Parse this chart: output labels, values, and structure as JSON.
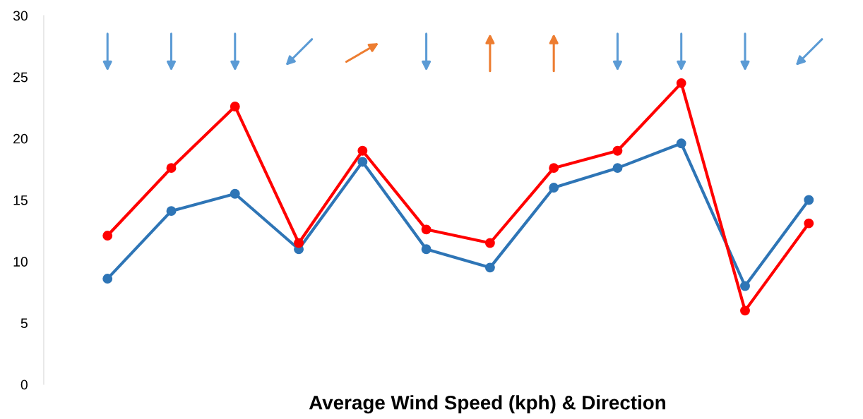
{
  "chart_data": {
    "type": "line",
    "title": "Average Wind Speed (kph) & Direction",
    "categories": [
      null,
      null,
      null,
      null,
      null,
      null,
      null,
      null,
      null,
      null,
      null,
      null
    ],
    "series": [
      {
        "color": "#2e75b6",
        "values": [
          8.6,
          14.1,
          15.5,
          11.0,
          18.1,
          11.0,
          9.5,
          16.0,
          17.6,
          19.6,
          8.0,
          15.0
        ]
      },
      {
        "color": "#ff0000",
        "values": [
          12.1,
          17.6,
          22.6,
          11.5,
          19.0,
          12.6,
          11.5,
          17.6,
          19.0,
          24.5,
          6.0,
          13.1
        ]
      }
    ],
    "ylim": [
      0,
      30
    ],
    "yticks": [
      0,
      5,
      10,
      15,
      20,
      25,
      30
    ],
    "tick_labels": "y",
    "grid": false,
    "legend": false,
    "marker": "circle",
    "line_style": "solid"
  }
}
